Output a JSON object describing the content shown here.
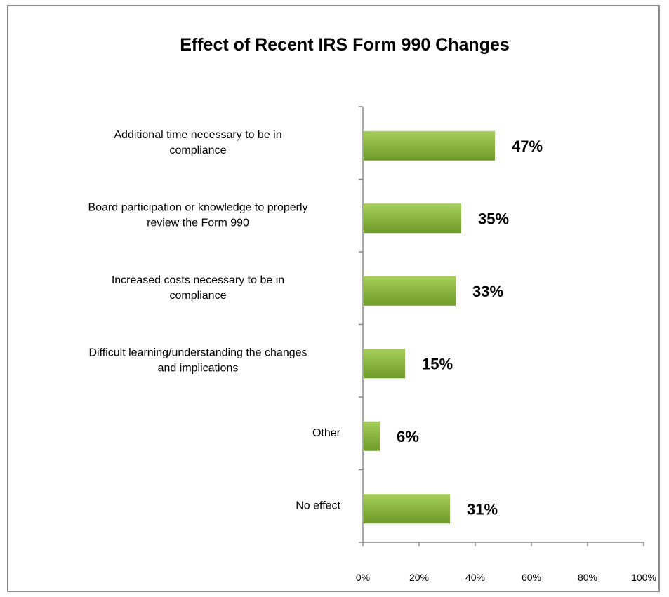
{
  "chart_data": {
    "type": "bar",
    "orientation": "horizontal",
    "title": "Effect of Recent IRS Form 990 Changes",
    "categories": [
      [
        "Additional time necessary to be in",
        "compliance"
      ],
      [
        "Board participation or knowledge to properly",
        "review the Form 990"
      ],
      [
        "Increased costs necessary to be in",
        "compliance"
      ],
      [
        "Difficult learning/understanding the changes",
        "and implications"
      ],
      [
        "Other"
      ],
      [
        "No effect"
      ]
    ],
    "values": [
      47,
      35,
      33,
      15,
      6,
      31
    ],
    "value_labels": [
      "47%",
      "35%",
      "33%",
      "15%",
      "6%",
      "31%"
    ],
    "xlim": [
      0,
      100
    ],
    "xticks": [
      0,
      20,
      40,
      60,
      80,
      100
    ],
    "xtick_labels": [
      "0%",
      "20%",
      "40%",
      "60%",
      "80%",
      "100%"
    ],
    "xlabel": "",
    "ylabel": "",
    "grid": false,
    "legend": "none",
    "bar_color_top": "#a6cf5a",
    "bar_color_bottom": "#6e9a2a"
  }
}
